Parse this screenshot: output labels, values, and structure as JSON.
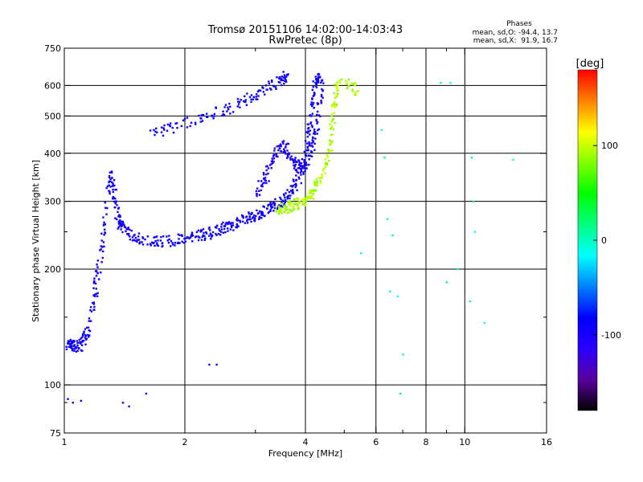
{
  "chart_data": {
    "type": "scatter",
    "title": "Tromsø 20151106 14:02:00-14:03:43",
    "subtitle": "RwPretec (8p)",
    "xlabel": "Frequency [MHz]",
    "ylabel": "Stationary phase Virtual Height [km]",
    "x_scale": "log",
    "y_scale": "log",
    "xlim": [
      1,
      16
    ],
    "ylim": [
      75,
      750
    ],
    "x_ticks": [
      {
        "value": 1,
        "label": "1"
      },
      {
        "value": 2,
        "label": "2"
      },
      {
        "value": 4,
        "label": "4"
      },
      {
        "value": 6,
        "label": "6"
      },
      {
        "value": 8,
        "label": "8"
      },
      {
        "value": 10,
        "label": "10"
      },
      {
        "value": 16,
        "label": "16"
      }
    ],
    "y_ticks": [
      {
        "value": 75,
        "label": "75"
      },
      {
        "value": 100,
        "label": "100"
      },
      {
        "value": 200,
        "label": "200"
      },
      {
        "value": 300,
        "label": "300"
      },
      {
        "value": 400,
        "label": "400"
      },
      {
        "value": 500,
        "label": "500"
      },
      {
        "value": 600,
        "label": "600"
      },
      {
        "value": 750,
        "label": "750"
      }
    ],
    "x_grid": [
      2,
      4,
      6,
      8,
      10
    ],
    "y_grid": [
      100,
      200,
      300,
      400,
      500,
      600
    ],
    "x_minor_ticks": [
      3,
      5,
      7,
      9
    ],
    "y_minor_ticks": [
      90,
      150,
      250
    ],
    "grid": true,
    "phase_stats": {
      "title": "Phases",
      "line_o": "mean, sd,O: -94.4, 13.7",
      "line_x": "mean, sd,X:  91.9, 16.7"
    },
    "colorbar": {
      "label": "[deg]",
      "range": [
        -180,
        180
      ],
      "ticks": [
        {
          "value": 100,
          "label": "100"
        },
        {
          "value": 0,
          "label": "0"
        },
        {
          "value": -100,
          "label": "-100"
        }
      ],
      "colors": [
        "#000000",
        "#5a00a0",
        "#2a00ff",
        "#0000ff",
        "#0080ff",
        "#00ffff",
        "#00ff80",
        "#00ff00",
        "#80ff00",
        "#ffff00",
        "#ff8000",
        "#ff0000"
      ]
    },
    "series": [
      {
        "mode": "O",
        "phase_deg": -94,
        "x": [
          1.01,
          1.03,
          1.05,
          1.07,
          1.1,
          1.12,
          1.15,
          1.18,
          1.2,
          1.22,
          1.25,
          1.27,
          1.3,
          1.32,
          1.34,
          1.36,
          1.38,
          1.4,
          1.45,
          1.5,
          1.6,
          1.7,
          1.8,
          1.9,
          2.0,
          2.1,
          2.2,
          2.3,
          2.4,
          2.5,
          2.6,
          2.7,
          2.8,
          2.9,
          3.0,
          3.1,
          3.2,
          3.3,
          3.4,
          3.5,
          3.6,
          3.7,
          3.8,
          3.9,
          4.0,
          4.05,
          4.1,
          4.15,
          4.2,
          4.25,
          4.3
        ],
        "y": [
          128,
          127,
          126,
          126,
          127,
          132,
          140,
          160,
          180,
          205,
          240,
          290,
          350,
          340,
          300,
          275,
          262,
          255,
          247,
          242,
          238,
          236,
          236,
          238,
          240,
          243,
          245,
          248,
          252,
          256,
          260,
          264,
          268,
          272,
          276,
          280,
          285,
          290,
          295,
          300,
          310,
          320,
          335,
          355,
          385,
          420,
          470,
          530,
          580,
          620,
          640
        ]
      },
      {
        "mode": "O-multi",
        "phase_deg": -100,
        "x": [
          3.0,
          3.1,
          3.2,
          3.3,
          3.4,
          3.5,
          3.6,
          3.7,
          3.8,
          3.9,
          4.0,
          4.1,
          4.2,
          4.3,
          4.35,
          4.4
        ],
        "y": [
          310,
          330,
          350,
          380,
          410,
          420,
          410,
          390,
          370,
          370,
          380,
          400,
          430,
          480,
          550,
          620
        ]
      },
      {
        "mode": "O-upper",
        "phase_deg": -90,
        "x": [
          1.6,
          1.8,
          2.0,
          2.2,
          2.4,
          2.6,
          2.8,
          3.0,
          3.2,
          3.4,
          3.5,
          3.6
        ],
        "y": [
          440,
          460,
          480,
          495,
          510,
          525,
          545,
          565,
          590,
          610,
          625,
          640
        ]
      },
      {
        "mode": "X",
        "phase_deg": 92,
        "x": [
          3.4,
          3.5,
          3.6,
          3.7,
          3.8,
          3.9,
          4.0,
          4.1,
          4.2,
          4.3,
          4.4,
          4.5,
          4.6,
          4.65,
          4.7,
          4.75,
          4.8,
          5.2,
          5.4
        ],
        "y": [
          285,
          288,
          290,
          292,
          295,
          298,
          302,
          310,
          320,
          335,
          355,
          380,
          420,
          460,
          510,
          560,
          620,
          600,
          580
        ]
      },
      {
        "mode": "low",
        "phase_deg": -100,
        "x": [
          1.02,
          1.05,
          1.1,
          1.4,
          1.45,
          1.6,
          2.3,
          2.4
        ],
        "y": [
          92,
          90,
          91,
          90,
          88,
          95,
          113,
          113
        ]
      },
      {
        "mode": "scattered",
        "phase_deg": 0,
        "x": [
          6.2,
          6.3,
          6.4,
          6.6,
          6.8,
          7.0,
          8.7,
          9.2,
          9.6,
          10.4,
          10.5,
          10.6,
          11.2,
          13.2,
          5.5,
          6.5,
          6.9,
          9.0,
          10.3
        ],
        "y": [
          460,
          390,
          270,
          245,
          170,
          120,
          610,
          610,
          200,
          390,
          300,
          250,
          145,
          385,
          220,
          175,
          95,
          185,
          165
        ]
      }
    ]
  }
}
